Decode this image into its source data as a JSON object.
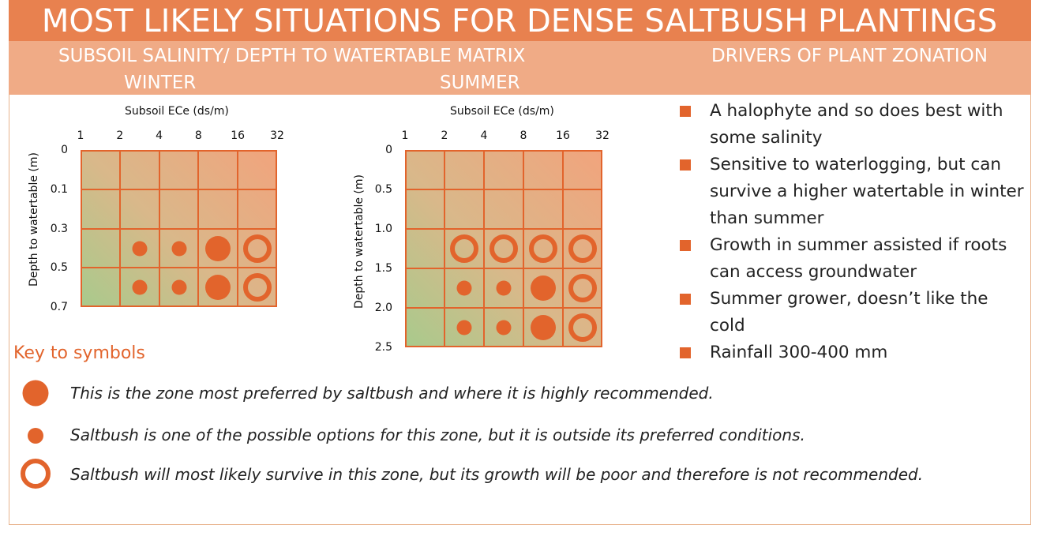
{
  "title": "MOST LIKELY SITUATIONS FOR DENSE SALTBUSH PLANTINGS",
  "subheads": {
    "matrix": "SUBSOIL SALINITY/ DEPTH TO WATERTABLE MATRIX",
    "drivers": "DRIVERS OF PLANT ZONATION",
    "winter": "WINTER",
    "summer": "SUMMER"
  },
  "chart_data": [
    {
      "type": "table",
      "title": "WINTER",
      "xlabel": "Subsoil ECe (ds/m)",
      "ylabel": "Depth to watertable (m)",
      "x_ticks": [
        "1",
        "2",
        "4",
        "8",
        "16",
        "32"
      ],
      "y_ticks": [
        "0",
        "0.1",
        "0.3",
        "0.5",
        "0.7"
      ],
      "symbols": [
        [
          null,
          null,
          null,
          null,
          null
        ],
        [
          null,
          null,
          null,
          null,
          null
        ],
        [
          null,
          "small",
          "small",
          "large",
          "ring"
        ],
        [
          null,
          "small",
          "small",
          "large",
          "ring"
        ]
      ]
    },
    {
      "type": "table",
      "title": "SUMMER",
      "xlabel": "Subsoil ECe (ds/m)",
      "ylabel": "Depth to watertable (m)",
      "x_ticks": [
        "1",
        "2",
        "4",
        "8",
        "16",
        "32"
      ],
      "y_ticks": [
        "0",
        "0.5",
        "1.0",
        "1.5",
        "2.0",
        "2.5"
      ],
      "symbols": [
        [
          null,
          null,
          null,
          null,
          null
        ],
        [
          null,
          null,
          null,
          null,
          null
        ],
        [
          null,
          "ring",
          "ring",
          "ring",
          "ring"
        ],
        [
          null,
          "small",
          "small",
          "large",
          "ring"
        ],
        [
          null,
          "small",
          "small",
          "large",
          "ring"
        ]
      ]
    }
  ],
  "key": {
    "title": "Key to symbols",
    "items": [
      {
        "symbol": "large",
        "text": "This is the zone most preferred by saltbush and where it is highly recommended."
      },
      {
        "symbol": "small",
        "text": "Saltbush is one of the possible options for this zone, but it is outside its preferred conditions."
      },
      {
        "symbol": "ring",
        "text": "Saltbush will most likely survive in this zone, but its growth will be poor and therefore is not recommended."
      }
    ]
  },
  "drivers": [
    "A halophyte and so does best with some salinity",
    "Sensitive to waterlogging, but can survive a higher watertable in winter than summer",
    "Growth in summer assisted if roots can access groundwater",
    "Summer grower, doesn’t like the cold",
    "Rainfall 300-400 mm"
  ],
  "colors": {
    "accent": "#e2642c",
    "title_bar": "#e8814f",
    "sub_bar": "#f0ab86"
  }
}
